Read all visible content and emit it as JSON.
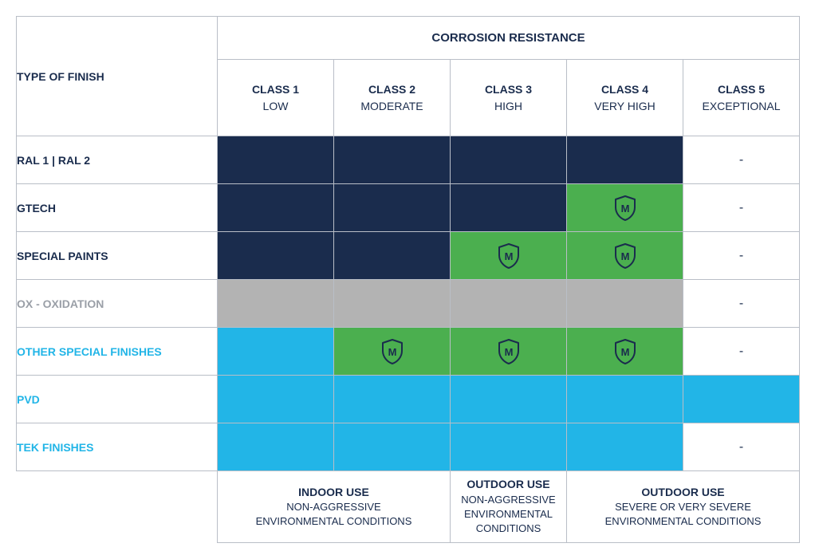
{
  "headers": {
    "type_of_finish": "TYPE OF FINISH",
    "super": "CORROSION RESISTANCE",
    "classes": [
      {
        "name": "CLASS 1",
        "desc": "LOW"
      },
      {
        "name": "CLASS 2",
        "desc": "MODERATE"
      },
      {
        "name": "CLASS 3",
        "desc": "HIGH"
      },
      {
        "name": "CLASS 4",
        "desc": "VERY HIGH"
      },
      {
        "name": "CLASS 5",
        "desc": "EXCEPTIONAL"
      }
    ]
  },
  "colors": {
    "navy": "#1a2c4d",
    "green": "#4baf4f",
    "grey": "#b3b3b3",
    "sky": "#22b5e7",
    "white": "#ffffff"
  },
  "icon": {
    "letter": "M",
    "stroke": "#1a2c4d"
  },
  "dash": "-",
  "rows": [
    {
      "label": "RAL 1 | RAL 2",
      "label_color": "navy",
      "cells": [
        {
          "k": "fill",
          "c": "navy"
        },
        {
          "k": "fill",
          "c": "navy"
        },
        {
          "k": "fill",
          "c": "navy"
        },
        {
          "k": "fill",
          "c": "navy"
        },
        {
          "k": "dash"
        }
      ]
    },
    {
      "label": "GTECH",
      "label_color": "navy",
      "cells": [
        {
          "k": "fill",
          "c": "navy"
        },
        {
          "k": "fill",
          "c": "navy"
        },
        {
          "k": "fill",
          "c": "navy"
        },
        {
          "k": "shield",
          "c": "green"
        },
        {
          "k": "dash"
        }
      ]
    },
    {
      "label": "SPECIAL PAINTS",
      "label_color": "navy",
      "cells": [
        {
          "k": "fill",
          "c": "navy"
        },
        {
          "k": "fill",
          "c": "navy"
        },
        {
          "k": "shield",
          "c": "green"
        },
        {
          "k": "shield",
          "c": "green"
        },
        {
          "k": "dash"
        }
      ]
    },
    {
      "label": "OX - OXIDATION",
      "label_color": "grey",
      "cells": [
        {
          "k": "fill",
          "c": "grey"
        },
        {
          "k": "fill",
          "c": "grey"
        },
        {
          "k": "fill",
          "c": "grey"
        },
        {
          "k": "fill",
          "c": "grey"
        },
        {
          "k": "dash"
        }
      ]
    },
    {
      "label": "OTHER SPECIAL FINISHES",
      "label_color": "sky",
      "cells": [
        {
          "k": "fill",
          "c": "sky"
        },
        {
          "k": "shield",
          "c": "green"
        },
        {
          "k": "shield",
          "c": "green"
        },
        {
          "k": "shield",
          "c": "green"
        },
        {
          "k": "dash"
        }
      ]
    },
    {
      "label": "PVD",
      "label_color": "sky",
      "cells": [
        {
          "k": "fill",
          "c": "sky"
        },
        {
          "k": "fill",
          "c": "sky"
        },
        {
          "k": "fill",
          "c": "sky"
        },
        {
          "k": "fill",
          "c": "sky"
        },
        {
          "k": "fill",
          "c": "sky"
        }
      ]
    },
    {
      "label": "TEK FINISHES",
      "label_color": "sky",
      "cells": [
        {
          "k": "fill",
          "c": "sky"
        },
        {
          "k": "fill",
          "c": "sky"
        },
        {
          "k": "fill",
          "c": "sky"
        },
        {
          "k": "fill",
          "c": "sky"
        },
        {
          "k": "dash"
        }
      ]
    }
  ],
  "footer": [
    {
      "span": 2,
      "bold": "INDOOR USE",
      "reg1": "NON-AGGRESSIVE",
      "reg2": "ENVIRONMENTAL CONDITIONS"
    },
    {
      "span": 1,
      "bold": "OUTDOOR USE",
      "reg1": "NON-AGGRESSIVE",
      "reg2": "ENVIRONMENTAL",
      "reg3": "CONDITIONS"
    },
    {
      "span": 2,
      "bold": "OUTDOOR USE",
      "reg1": "SEVERE OR VERY SEVERE",
      "reg2": "ENVIRONMENTAL CONDITIONS"
    }
  ]
}
